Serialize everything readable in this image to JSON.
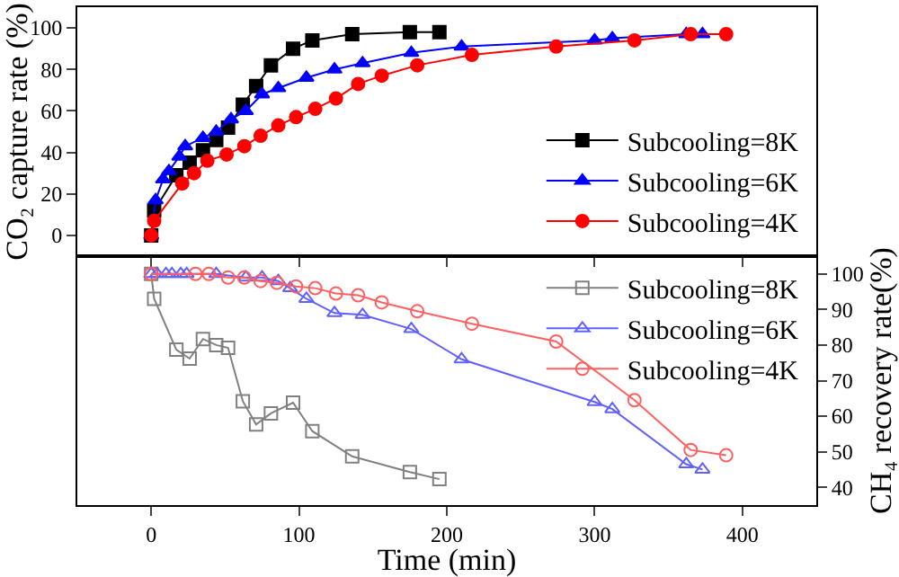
{
  "chart_data": [
    {
      "type": "line",
      "ylabel": "CO₂ capture rate (%)",
      "xlim": [
        -50,
        450
      ],
      "xticks": [
        0,
        100,
        200,
        300,
        400
      ],
      "ylim": [
        -10,
        110
      ],
      "yticks": [
        0,
        20,
        40,
        60,
        80,
        100
      ],
      "tick_labels": "y",
      "legend": "bottom right",
      "grid": false,
      "series": [
        {
          "name": "Subcooling=8K",
          "color": "#000000",
          "marker": "square",
          "x": [
            0,
            2,
            17,
            26,
            35,
            44,
            52,
            62,
            71,
            81,
            96,
            109,
            136,
            175,
            195
          ],
          "values": [
            0,
            12,
            29,
            35,
            41,
            46,
            52,
            63,
            72,
            82,
            90,
            94,
            97,
            98,
            98
          ]
        },
        {
          "name": "Subcooling=6K",
          "color": "#0000ff",
          "marker": "triangle",
          "x": [
            0,
            3,
            8,
            12,
            19,
            23,
            35,
            44,
            54,
            64,
            75,
            86,
            105,
            124,
            143,
            176,
            210,
            300,
            312,
            362,
            373
          ],
          "values": [
            0,
            17,
            27,
            31,
            38,
            43,
            47,
            50,
            56,
            60,
            68,
            71,
            76,
            80,
            83,
            88,
            91,
            94,
            95,
            97,
            97
          ]
        },
        {
          "name": "Subcooling=4K",
          "color": "#ff0000",
          "marker": "circle",
          "x": [
            0,
            2,
            21,
            29,
            38,
            51,
            63,
            74,
            86,
            98,
            111,
            125,
            140,
            156,
            180,
            217,
            274,
            327,
            365,
            389
          ],
          "values": [
            0,
            7,
            25,
            30,
            36,
            39,
            43,
            48,
            53,
            57,
            61,
            66,
            73,
            77,
            82,
            87,
            91,
            94,
            97,
            97
          ]
        }
      ]
    },
    {
      "type": "line",
      "xlabel": "Time (min)",
      "y2label": "CH₄ recovery rate(%)",
      "xlim": [
        -50,
        450
      ],
      "xticks": [
        0,
        100,
        200,
        300,
        400
      ],
      "y2lim": [
        35,
        105
      ],
      "y2ticks": [
        40,
        50,
        60,
        70,
        80,
        90,
        100
      ],
      "tick_labels": [
        "x",
        "y2"
      ],
      "legend": "top right",
      "grid": false,
      "series": [
        {
          "name": "Subcooling=8K",
          "color": "#808080",
          "marker": "square-open",
          "axis": "y2",
          "x": [
            0,
            2,
            17,
            26,
            35,
            44,
            52,
            62,
            71,
            81,
            96,
            109,
            136,
            175,
            195
          ],
          "values": [
            100,
            93,
            78.7,
            76.2,
            81.7,
            80,
            79.2,
            64.2,
            57.7,
            60.8,
            63.8,
            55.8,
            48.7,
            44.3,
            42.3
          ]
        },
        {
          "name": "Subcooling=6K",
          "color": "#6060ff",
          "marker": "triangle-open",
          "axis": "y2",
          "x": [
            0,
            4,
            10,
            14,
            20,
            24,
            44,
            64,
            75,
            86,
            94,
            105,
            124,
            143,
            176,
            210,
            300,
            312,
            362,
            373
          ],
          "values": [
            100,
            100,
            100,
            100,
            100,
            100,
            100,
            99,
            99,
            98,
            96,
            93,
            89,
            88.5,
            84.5,
            76,
            64,
            62,
            46.5,
            45
          ]
        },
        {
          "name": "Subcooling=4K",
          "color": "#ff6060",
          "marker": "circle-open",
          "axis": "y2",
          "x": [
            0,
            30,
            39,
            52,
            63,
            74,
            85,
            98,
            111,
            125,
            140,
            156,
            180,
            217,
            274,
            327,
            365,
            389
          ],
          "values": [
            100,
            100,
            100,
            99,
            99,
            98,
            97.5,
            96.5,
            96,
            94.5,
            94,
            92,
            89.5,
            86,
            81,
            64.5,
            50.5,
            49
          ]
        }
      ]
    }
  ]
}
